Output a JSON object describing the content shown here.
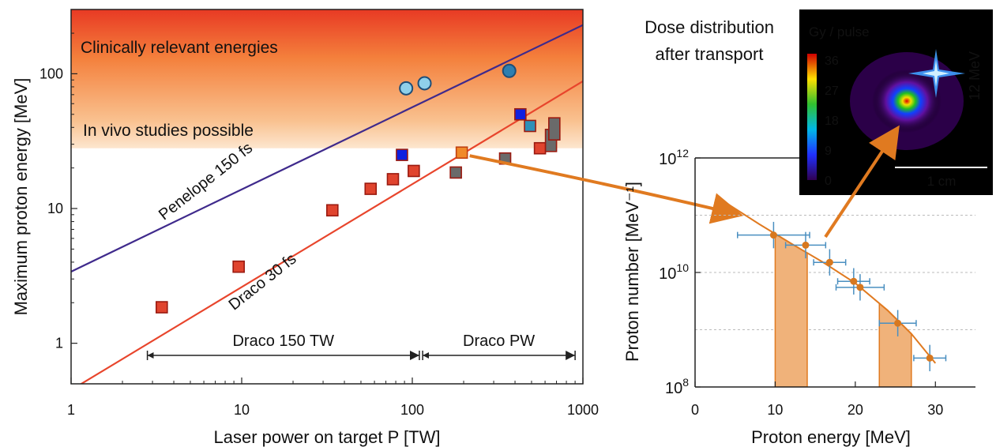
{
  "chart_data": [
    {
      "type": "scatter",
      "xlabel": "Laser power on target P [TW]",
      "ylabel": "Maximum proton energy  [MeV]",
      "x_scale": "log",
      "y_scale": "log",
      "xlim": [
        1,
        1000
      ],
      "ylim": [
        0.5,
        300
      ],
      "x_ticks": [
        1,
        10,
        100,
        1000
      ],
      "x_tick_labels": [
        "1",
        "10",
        "100",
        "1000"
      ],
      "y_ticks": [
        1,
        10,
        100
      ],
      "y_tick_labels": [
        "1",
        "10",
        "100"
      ],
      "bands": {
        "clinical": "Clinically relevant energies",
        "in_vivo": "In vivo studies possible",
        "in_vivo_from_MeV": 28
      },
      "lines": [
        {
          "name": "Penelope 150 fs",
          "color": "#3f2a8c",
          "points": [
            [
              1,
              3.4
            ],
            [
              1000,
              230
            ]
          ]
        },
        {
          "name": "Draco 30 fs",
          "color": "#e8452c",
          "points": [
            [
              1,
              0.45
            ],
            [
              1000,
              88
            ]
          ]
        }
      ],
      "ranges": [
        {
          "label": "Draco 150 TW",
          "from": 2.8,
          "to": 110
        },
        {
          "label": "Draco PW",
          "from": 115,
          "to": 900
        }
      ],
      "series": [
        {
          "name": "red squares",
          "color": "#e0442e",
          "points": [
            [
              3.4,
              1.85
            ],
            [
              9.6,
              3.7
            ],
            [
              34,
              9.7
            ],
            [
              57,
              14
            ],
            [
              77,
              16.5
            ],
            [
              102,
              19
            ],
            [
              195,
              26
            ],
            [
              560,
              28
            ]
          ]
        },
        {
          "name": "gray squares",
          "color": "#6a6a6a",
          "points": [
            [
              180,
              18.5
            ],
            [
              350,
              23.5
            ],
            [
              650,
              32
            ],
            [
              680,
              39
            ]
          ]
        },
        {
          "name": "blue squares",
          "color": "#1020e0",
          "points": [
            [
              87,
              25
            ],
            [
              430,
              50
            ]
          ]
        },
        {
          "name": "teal squares",
          "color": "#2e90b8",
          "points": [
            [
              490,
              41
            ]
          ]
        },
        {
          "name": "circles",
          "color": "#8fd0ea",
          "points": [
            [
              92,
              78
            ],
            [
              118,
              85
            ],
            [
              370,
              105
            ]
          ]
        }
      ],
      "highlight_point": [
        195,
        26
      ]
    },
    {
      "type": "scatter",
      "xlabel": "Proton energy [MeV]",
      "ylabel": "Proton number [MeV⁻¹]",
      "y_scale": "log",
      "xlim": [
        0,
        35
      ],
      "ylim": [
        100000000.0,
        1000000000000.0
      ],
      "x_ticks": [
        0,
        10,
        20,
        30
      ],
      "x_tick_labels": [
        "0",
        "10",
        "20",
        "30"
      ],
      "y_ticks": [
        100000000.0,
        10000000000.0,
        1000000000000.0
      ],
      "y_tick_labels": [
        {
          "base": "10",
          "exp": "8"
        },
        {
          "base": "10",
          "exp": "10"
        },
        {
          "base": "10",
          "exp": "12"
        }
      ],
      "points": [
        {
          "x": 9.8,
          "y": 45000000000.0,
          "xerr": 4.5
        },
        {
          "x": 13.8,
          "y": 30000000000.0,
          "xerr": 2.5
        },
        {
          "x": 16.8,
          "y": 15000000000.0,
          "xerr": 2.0
        },
        {
          "x": 19.8,
          "y": 7000000000.0,
          "xerr": 2.0
        },
        {
          "x": 20.6,
          "y": 5500000000.0,
          "xerr": 3.0
        },
        {
          "x": 25.3,
          "y": 1300000000.0,
          "xerr": 2.3
        },
        {
          "x": 29.3,
          "y": 320000000.0,
          "xerr": 2.0
        }
      ],
      "fit": [
        [
          4,
          160000000000.0
        ],
        [
          8,
          70000000000.0
        ],
        [
          12,
          32000000000.0
        ],
        [
          16,
          15000000000.0
        ],
        [
          20,
          6500000000.0
        ],
        [
          24,
          2200000000.0
        ],
        [
          27,
          850000000.0
        ],
        [
          30,
          260000000.0
        ]
      ],
      "shaded": [
        [
          10,
          14
        ],
        [
          23,
          27
        ]
      ]
    }
  ],
  "inset": {
    "title_line1": "Dose distribution",
    "title_line2": "after transport",
    "colorbar_title": "Gy / pulse",
    "colorbar_ticks": [
      "36",
      "27",
      "18",
      "9",
      "0"
    ],
    "scale_bar": "1 cm",
    "energy_label": "12 MeV"
  }
}
